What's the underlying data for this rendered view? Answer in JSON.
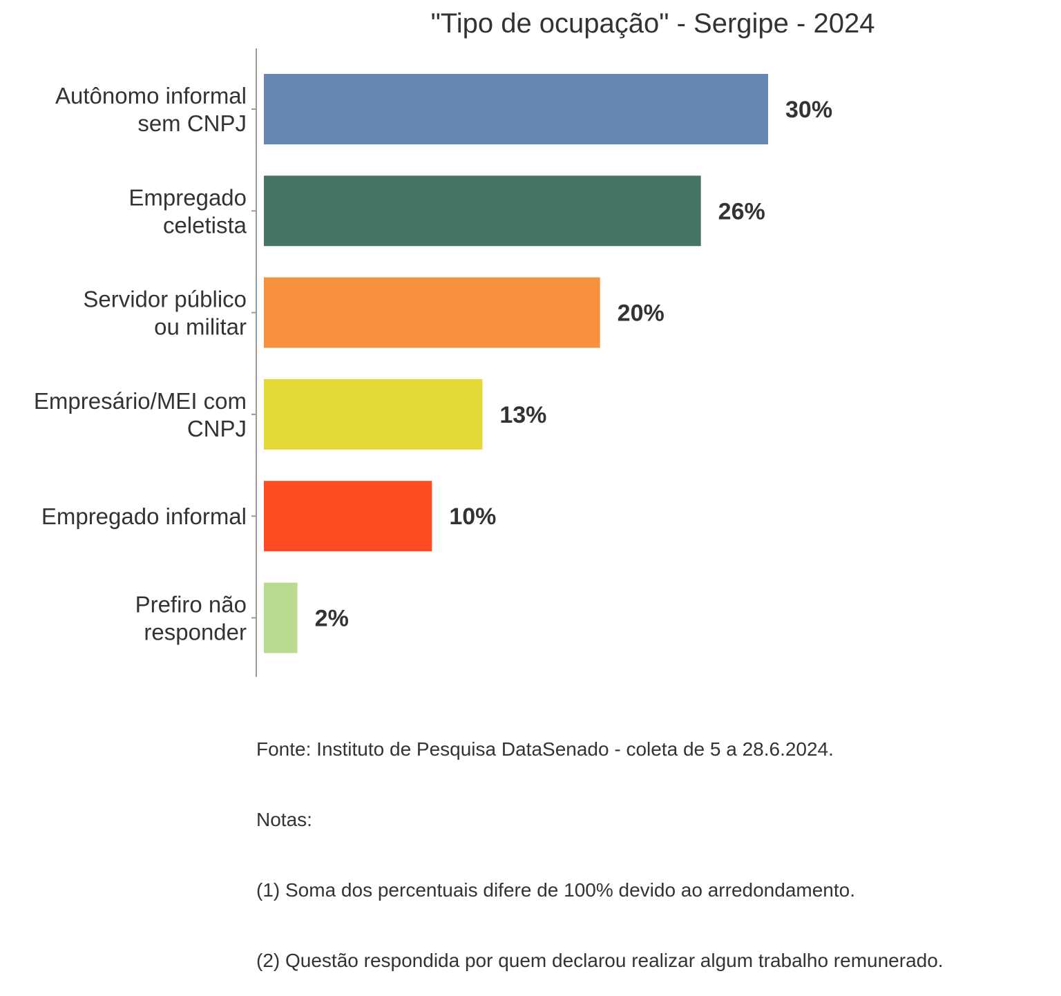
{
  "chart_data": {
    "type": "bar",
    "orientation": "horizontal",
    "title": "\"Tipo de ocupação\" - Sergipe - 2024",
    "xlabel": "",
    "ylabel": "",
    "xlim": [
      0,
      30
    ],
    "grid": false,
    "legend": "none",
    "categories": [
      [
        "Autônomo informal",
        "sem CNPJ"
      ],
      [
        "Empregado",
        "celetista"
      ],
      [
        "Servidor público",
        "ou militar"
      ],
      [
        "Empresário/MEI com",
        "CNPJ"
      ],
      [
        "Empregado informal"
      ],
      [
        "Prefiro não",
        "responder"
      ]
    ],
    "values": [
      30,
      26,
      20,
      13,
      10,
      2
    ],
    "value_labels": [
      "30%",
      "26%",
      "20%",
      "13%",
      "10%",
      "2%"
    ],
    "colors": [
      "#6688b0",
      "#467563",
      "#f8913e",
      "#e4d937",
      "#fe4b22",
      "#badc92"
    ]
  },
  "caption": {
    "source": "Fonte: Instituto de Pesquisa DataSenado - coleta de 5 a 28.6.2024.",
    "notes_heading": "Notas:",
    "note_1": "(1) Soma dos percentuais difere de 100% devido ao arredondamento.",
    "note_2": "(2) Questão respondida por quem declarou realizar algum trabalho remunerado."
  }
}
